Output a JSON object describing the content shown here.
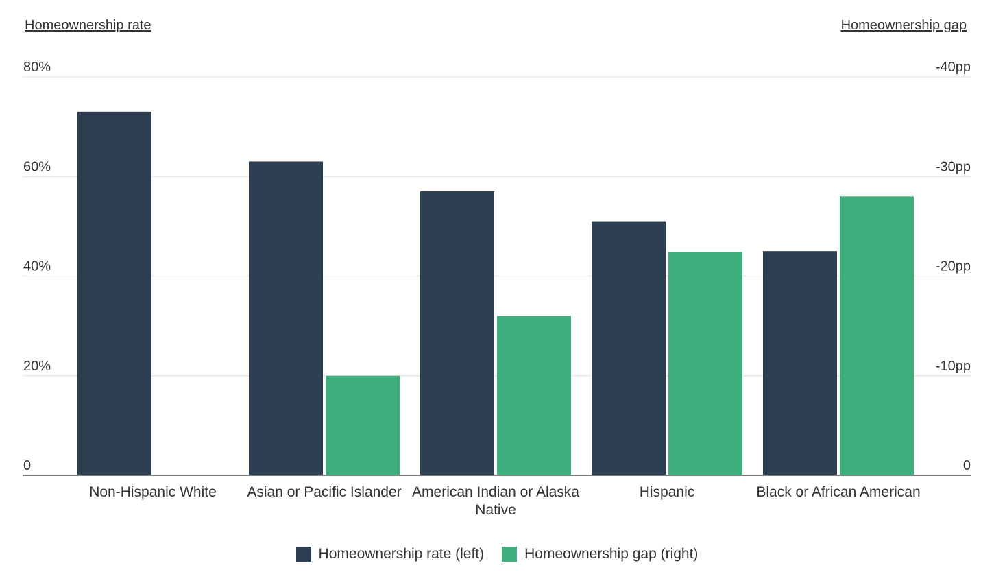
{
  "chart_data": {
    "type": "bar",
    "title": "",
    "left_axis": {
      "label": "Homeownership rate",
      "ticks": [
        "0",
        "20%",
        "40%",
        "60%",
        "80%"
      ],
      "range": [
        0,
        80
      ]
    },
    "right_axis": {
      "label": "Homeownership gap",
      "ticks": [
        "0",
        "-10pp",
        "-20pp",
        "-30pp",
        "-40pp"
      ],
      "range": [
        0,
        -40
      ]
    },
    "categories": [
      "Non-Hispanic White",
      "Asian or Pacific Islander",
      "American Indian or Alaska Native",
      "Hispanic",
      "Black or African American"
    ],
    "series": [
      {
        "name": "Homeownership rate (left)",
        "axis": "left",
        "color": "#2d3e50",
        "values": [
          73,
          63,
          57,
          51,
          45
        ]
      },
      {
        "name": "Homeownership gap (right)",
        "axis": "right",
        "color": "#3eaf7c",
        "values": [
          0,
          -10,
          -16,
          -22.4,
          -28
        ]
      }
    ],
    "grid": true,
    "legend_position": "bottom-center"
  }
}
